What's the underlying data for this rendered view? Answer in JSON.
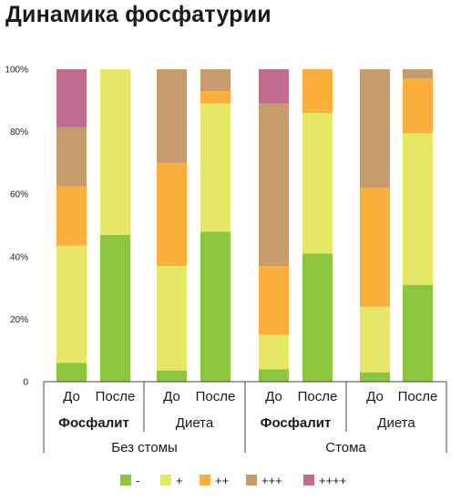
{
  "chart_data": {
    "type": "bar",
    "stacked": true,
    "title": "Динамика фосфатурии",
    "ylim": [
      0,
      100
    ],
    "yticks": [
      "0",
      "20%",
      "40%",
      "60%",
      "80%",
      "100%"
    ],
    "categories": [
      "До",
      "После",
      "До",
      "После",
      "До",
      "После",
      "До",
      "После"
    ],
    "groups": [
      {
        "label": "Фосфалит",
        "bold": true
      },
      {
        "label": "Диета",
        "bold": false
      },
      {
        "label": "Фосфалит",
        "bold": true
      },
      {
        "label": "Диета",
        "bold": false
      }
    ],
    "supergroups": [
      "Без стомы",
      "Стома"
    ],
    "legend_position": "bottom",
    "series": [
      {
        "name": "-",
        "color": "#8cc63f",
        "values": [
          6,
          47,
          3.5,
          48,
          4,
          41,
          3,
          31
        ]
      },
      {
        "name": "+",
        "color": "#e6e766",
        "values": [
          37.5,
          53,
          33.5,
          41,
          11,
          45,
          21,
          48.5
        ]
      },
      {
        "name": "++",
        "color": "#fbb03b",
        "values": [
          19,
          0,
          33,
          4,
          22,
          14,
          38,
          17.5
        ]
      },
      {
        "name": "+++",
        "color": "#c69c6d",
        "values": [
          19,
          0,
          30,
          7,
          52,
          0,
          38,
          3
        ]
      },
      {
        "name": "++++",
        "color": "#c06c8e",
        "values": [
          18.5,
          0,
          0,
          0,
          11,
          0,
          0,
          0
        ]
      }
    ]
  }
}
